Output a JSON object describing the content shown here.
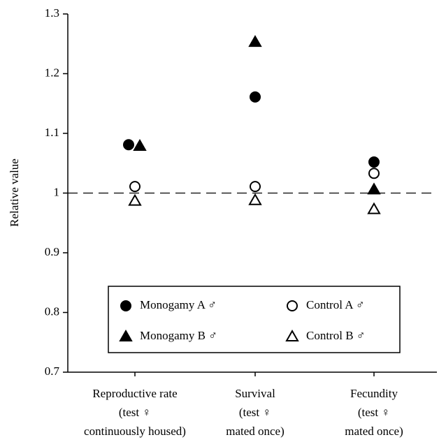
{
  "chart_data": {
    "type": "scatter",
    "y_label": "Relative value",
    "categories": [
      [
        "Reproductive rate",
        "(test ♀",
        "continuously housed)"
      ],
      [
        "Survival",
        "(test ♀",
        "mated once)"
      ],
      [
        "Fecundity",
        "(test ♀",
        "mated once)"
      ]
    ],
    "series": [
      {
        "name": "Monogamy A ♂",
        "color": "#000000",
        "marker": "circle",
        "filled": true,
        "values": [
          1.081,
          1.161,
          1.052
        ]
      },
      {
        "name": "Monogamy B ♂",
        "color": "#000000",
        "marker": "triangle",
        "filled": true,
        "values": [
          1.079,
          1.253,
          1.006
        ]
      },
      {
        "name": "Control A ♂",
        "color": "#000000",
        "marker": "circle",
        "filled": false,
        "values": [
          1.011,
          1.011,
          1.033
        ]
      },
      {
        "name": "Control B ♂",
        "color": "#000000",
        "marker": "triangle",
        "filled": false,
        "values": [
          0.987,
          0.988,
          0.973
        ]
      }
    ],
    "reference_line": 1,
    "ylim": [
      0.7,
      1.3
    ],
    "yticks": [
      0.7,
      0.8,
      0.9,
      1,
      1.1,
      1.2,
      1.3
    ]
  }
}
